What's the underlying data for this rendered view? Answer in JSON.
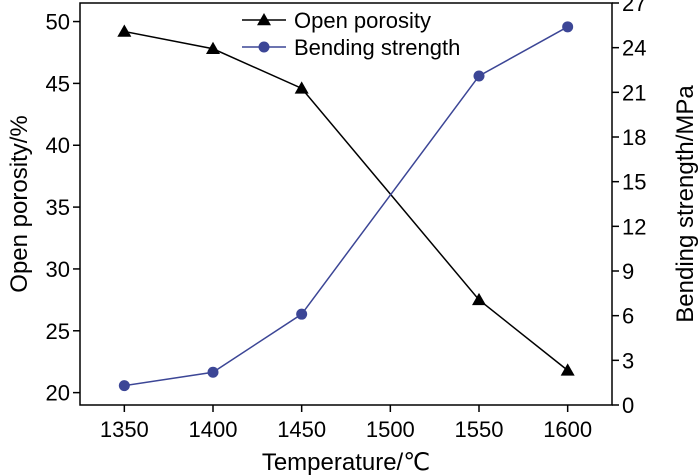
{
  "chart_data": {
    "type": "line",
    "x": [
      1350,
      1400,
      1450,
      1550,
      1600
    ],
    "xlabel": "Temperature/℃",
    "xlim": [
      1325,
      1625
    ],
    "xticks": [
      "1350",
      "1400",
      "1450",
      "1500",
      "1550",
      "1600"
    ],
    "y_left": {
      "label": "Open porosity/%",
      "lim": [
        19,
        51.5
      ],
      "ticks": [
        "20",
        "25",
        "30",
        "35",
        "40",
        "45",
        "50"
      ]
    },
    "y_right": {
      "label": "Bending strength/MPa",
      "lim": [
        0,
        27
      ],
      "ticks": [
        "0",
        "3",
        "6",
        "9",
        "12",
        "15",
        "18",
        "21",
        "24",
        "27"
      ]
    },
    "series": [
      {
        "name": "Open porosity",
        "axis": "left",
        "marker": "triangle",
        "color": "#000000",
        "values": [
          49.2,
          47.8,
          44.6,
          27.5,
          21.8
        ]
      },
      {
        "name": "Bending strength",
        "axis": "right",
        "marker": "circle",
        "color": "#3c4696",
        "values": [
          1.3,
          2.2,
          6.1,
          22.1,
          25.4
        ]
      }
    ],
    "legend": {
      "position": "top-right",
      "entries": [
        "Open porosity",
        "Bending strength"
      ]
    },
    "grid": false
  }
}
